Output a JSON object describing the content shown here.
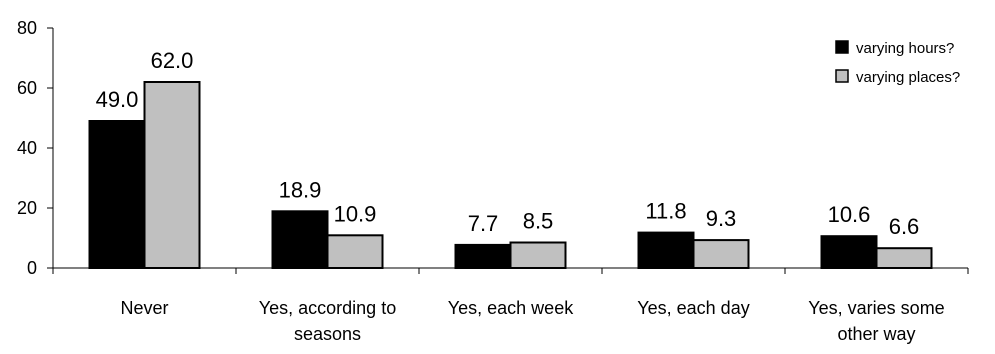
{
  "chart_data": {
    "type": "bar",
    "categories": [
      [
        "Never"
      ],
      [
        "Yes, according to",
        "seasons"
      ],
      [
        "Yes, each week"
      ],
      [
        "Yes, each day"
      ],
      [
        "Yes, varies some",
        "other way"
      ]
    ],
    "series": [
      {
        "name": "varying hours?",
        "color": "#000000",
        "values": [
          49.0,
          18.9,
          7.7,
          11.8,
          10.6
        ]
      },
      {
        "name": "varying places?",
        "color": "#c0c0c0",
        "values": [
          62.0,
          10.9,
          8.5,
          9.3,
          6.6
        ]
      }
    ],
    "value_labels": [
      [
        "49.0",
        "18.9",
        "7.7",
        "11.8",
        "10.6"
      ],
      [
        "62.0",
        "10.9",
        "8.5",
        "9.3",
        "6.6"
      ]
    ],
    "ylim": [
      0,
      80
    ],
    "yticks": [
      "0",
      "20",
      "40",
      "60",
      "80"
    ],
    "grid": false,
    "legend_position": "top-right"
  }
}
